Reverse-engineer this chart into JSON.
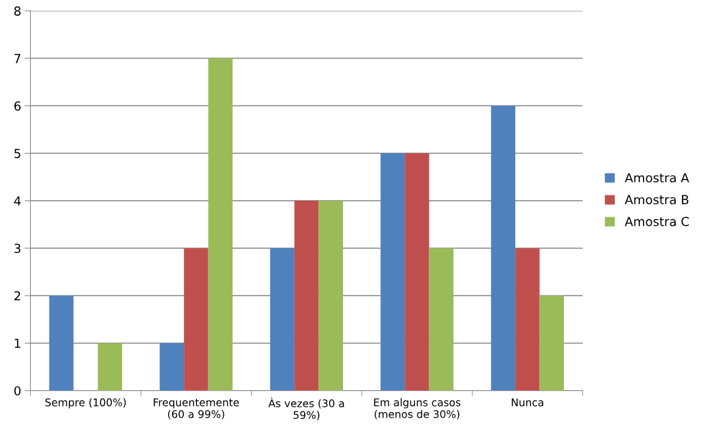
{
  "chart_data": {
    "type": "bar",
    "categories": [
      "Sempre (100%)",
      "Frequentemente\n(60 a 99%)",
      "Às vezes (30 a\n59%)",
      "Em alguns casos\n(menos de 30%)",
      "Nunca"
    ],
    "series": [
      {
        "name": "Amostra A",
        "color": "#4f81bd",
        "values": [
          2,
          1,
          3,
          5,
          6
        ]
      },
      {
        "name": "Amostra B",
        "color": "#c0504d",
        "values": [
          0,
          3,
          4,
          5,
          3
        ]
      },
      {
        "name": "Amostra C",
        "color": "#9bbb59",
        "values": [
          1,
          7,
          4,
          3,
          2
        ]
      }
    ],
    "ylim": [
      0,
      8
    ],
    "yticks": [
      0,
      1,
      2,
      3,
      4,
      5,
      6,
      7,
      8
    ],
    "grid": "y",
    "legend": "right"
  }
}
